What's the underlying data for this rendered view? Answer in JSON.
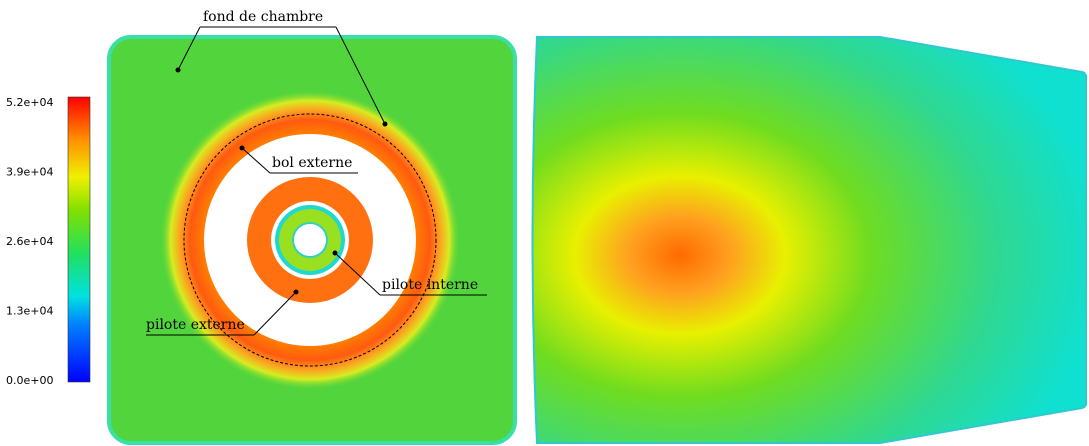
{
  "colorbar": {
    "ticks": [
      "5.2e+04",
      "3.9e+04",
      "2.6e+04",
      "1.3e+04",
      "0.0e+00"
    ]
  },
  "annotations": [
    "fond de chambre",
    "bol externe",
    "pilote interne",
    "pilote externe"
  ]
}
